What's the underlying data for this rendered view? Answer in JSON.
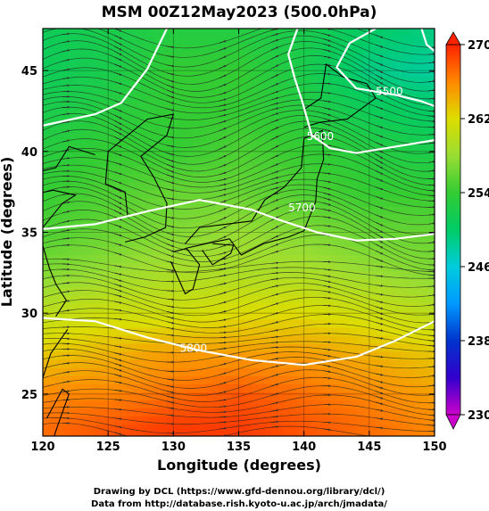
{
  "chart_data": {
    "type": "heatmap",
    "title": "MSM 00Z12May2023 (500.0hPa)",
    "xlabel": "Longitude (degrees)",
    "ylabel": "Latitude  (degrees)",
    "xlim": [
      120,
      150
    ],
    "ylim": [
      22.4,
      47.6
    ],
    "xticks": [
      120,
      125,
      130,
      135,
      140,
      145,
      150
    ],
    "yticks": [
      25,
      30,
      35,
      40,
      45
    ],
    "colorbar": {
      "min": 230,
      "max": 270,
      "ticks": [
        230,
        238,
        246,
        254,
        262,
        270
      ],
      "stops": [
        {
          "value": 230,
          "color": "#cc00cc"
        },
        {
          "value": 234,
          "color": "#3300cc"
        },
        {
          "value": 238,
          "color": "#0033cc"
        },
        {
          "value": 242,
          "color": "#0099ff"
        },
        {
          "value": 246,
          "color": "#00ccdd"
        },
        {
          "value": 250,
          "color": "#00cc66"
        },
        {
          "value": 254,
          "color": "#33cc33"
        },
        {
          "value": 258,
          "color": "#99dd33"
        },
        {
          "value": 262,
          "color": "#dddd00"
        },
        {
          "value": 266,
          "color": "#ff8800"
        },
        {
          "value": 270,
          "color": "#ff2200"
        }
      ]
    },
    "temperature_field": [
      {
        "lat": 47,
        "values": [
          251,
          252,
          253,
          253,
          252,
          250,
          249
        ]
      },
      {
        "lat": 45,
        "values": [
          251,
          252,
          254,
          254,
          252,
          249,
          248
        ]
      },
      {
        "lat": 42.5,
        "values": [
          252,
          253,
          254,
          254,
          253,
          251,
          250
        ]
      },
      {
        "lat": 40,
        "values": [
          253,
          254,
          254,
          255,
          254,
          253,
          252
        ]
      },
      {
        "lat": 37.5,
        "values": [
          254,
          255,
          256,
          256,
          255,
          254,
          254
        ]
      },
      {
        "lat": 35,
        "values": [
          255,
          256,
          257,
          258,
          257,
          256,
          256
        ]
      },
      {
        "lat": 32.5,
        "values": [
          257,
          258,
          259,
          259,
          259,
          258,
          257
        ]
      },
      {
        "lat": 30,
        "values": [
          260,
          261,
          261,
          262,
          262,
          261,
          260
        ]
      },
      {
        "lat": 27.5,
        "values": [
          263,
          264,
          265,
          265,
          265,
          264,
          263
        ]
      },
      {
        "lat": 25,
        "values": [
          266,
          266,
          267,
          268,
          267,
          266,
          265
        ]
      },
      {
        "lat": 23,
        "values": [
          267,
          268,
          269,
          269,
          268,
          267,
          266
        ]
      }
    ],
    "height_contours": [
      {
        "label": "5800",
        "points": [
          [
            120,
            29.7
          ],
          [
            124,
            29.5
          ],
          [
            128,
            28.5
          ],
          [
            132,
            27.7
          ],
          [
            136,
            27.1
          ],
          [
            140,
            26.8
          ],
          [
            144,
            27.3
          ],
          [
            147,
            28.3
          ],
          [
            150,
            29.5
          ]
        ]
      },
      {
        "label": "5700",
        "points": [
          [
            120,
            35.2
          ],
          [
            124,
            35.5
          ],
          [
            128,
            36.3
          ],
          [
            132,
            37.0
          ],
          [
            136,
            36.4
          ],
          [
            138,
            35.8
          ],
          [
            141,
            35.0
          ],
          [
            144,
            34.5
          ],
          [
            147,
            34.6
          ],
          [
            150,
            34.9
          ]
        ]
      },
      {
        "label": "5600",
        "points": [
          [
            120,
            41.6
          ],
          [
            124,
            42.3
          ],
          [
            126,
            43.0
          ],
          [
            128,
            45.1
          ],
          [
            129.5,
            47.6
          ]
        ]
      },
      {
        "label": "5600",
        "points": [
          [
            139.5,
            47.6
          ],
          [
            138.8,
            46.0
          ],
          [
            139.3,
            44.5
          ],
          [
            139.9,
            43.0
          ],
          [
            140.6,
            41.0
          ],
          [
            142,
            40.2
          ],
          [
            144,
            39.9
          ],
          [
            147,
            40.3
          ],
          [
            150,
            40.7
          ]
        ]
      },
      {
        "label": "5500",
        "points": [
          [
            145.5,
            47.6
          ],
          [
            143.5,
            46.7
          ],
          [
            142.5,
            45.2
          ],
          [
            144,
            43.9
          ],
          [
            147,
            43.5
          ],
          [
            149,
            43.1
          ],
          [
            150,
            42.8
          ]
        ]
      },
      {
        "label": "",
        "points": [
          [
            149,
            47.6
          ],
          [
            149.4,
            46.6
          ],
          [
            150,
            46.2
          ]
        ]
      }
    ],
    "contour_labels": [
      {
        "text": "5800",
        "x": 130.5,
        "y": 27.6
      },
      {
        "text": "5700",
        "x": 138.8,
        "y": 36.3
      },
      {
        "text": "5600",
        "x": 140.2,
        "y": 40.7
      },
      {
        "text": "5500",
        "x": 145.5,
        "y": 43.5
      }
    ],
    "wind_streamlines": "westerly, gray streamlines with arrowheads across the whole domain"
  },
  "credits": {
    "line1": "Drawing by DCL (https://www.gfd-dennou.org/library/dcl/)",
    "line2": "Data from http://database.rish.kyoto-u.ac.jp/arch/jmadata/"
  }
}
